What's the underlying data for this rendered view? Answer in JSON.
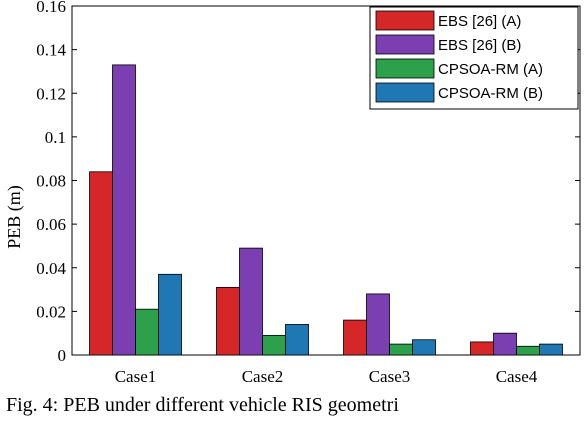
{
  "chart_data": {
    "type": "bar",
    "categories": [
      "Case1",
      "Case2",
      "Case3",
      "Case4"
    ],
    "series": [
      {
        "name": "EBS [26] (A)",
        "color": "#d62728",
        "values": [
          0.084,
          0.031,
          0.016,
          0.006
        ]
      },
      {
        "name": "EBS [26] (B)",
        "color": "#7b3fb1",
        "values": [
          0.133,
          0.049,
          0.028,
          0.01
        ]
      },
      {
        "name": "CPSOA-RM (A)",
        "color": "#2ca04a",
        "values": [
          0.021,
          0.009,
          0.005,
          0.004
        ]
      },
      {
        "name": "CPSOA-RM (B)",
        "color": "#1f77b4",
        "values": [
          0.037,
          0.014,
          0.007,
          0.005
        ]
      }
    ],
    "ylabel": "PEB (m)",
    "xlabel": "",
    "ylim": [
      0,
      0.16
    ],
    "yticks": [
      "0",
      "0.02",
      "0.04",
      "0.06",
      "0.08",
      "0.1",
      "0.12",
      "0.14",
      "0.16"
    ],
    "legend_position": "top-right",
    "grid": false
  },
  "caption": "Fig. 4: PEB under different vehicle RIS geometri"
}
